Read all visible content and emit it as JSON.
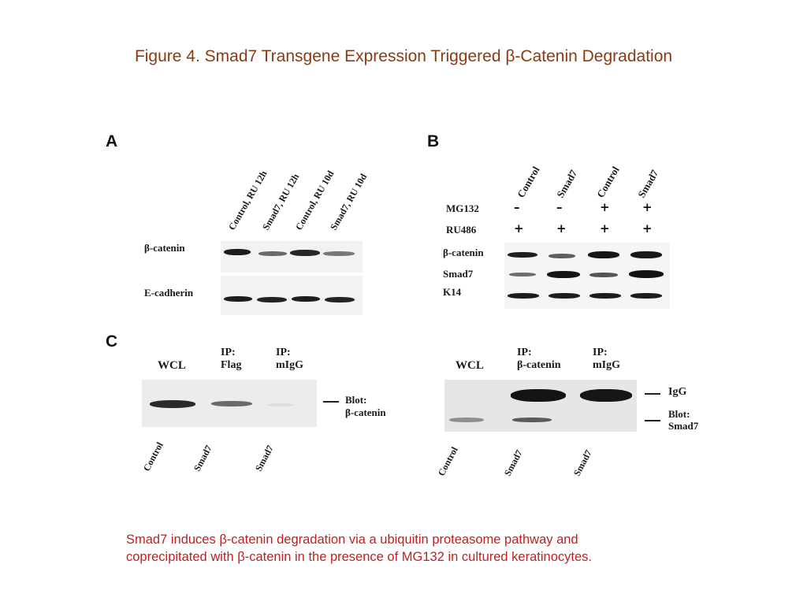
{
  "title": "Figure 4.  Smad7 Transgene Expression Triggered β-Catenin Degradation",
  "caption": {
    "line1": "Smad7 induces β-catenin degradation via a ubiquitin proteasome pathway and",
    "line2": "coprecipitated with β-catenin in the presence of MG132 in cultured keratinocytes."
  },
  "panelA": {
    "letter": "A",
    "lanes": [
      "Control, RU 12h",
      "Smad7, RU 12h",
      "Control, RU 10d",
      "Smad7, RU 10d"
    ],
    "rows": [
      "β-catenin",
      "E-cadherin"
    ]
  },
  "panelB": {
    "letter": "B",
    "lanes": [
      "Control",
      "Smad7",
      "Control",
      "Smad7"
    ],
    "treatments": [
      {
        "label": "MG132",
        "signs": [
          "–",
          "–",
          "+",
          "+"
        ]
      },
      {
        "label": "RU486",
        "signs": [
          "+",
          "+",
          "+",
          "+"
        ]
      }
    ],
    "rows": [
      "β-catenin",
      "Smad7",
      "K14"
    ]
  },
  "panelC": {
    "letter": "C",
    "left": {
      "headers": [
        "WCL",
        "IP:",
        "Flag",
        "IP:",
        "mIgG"
      ],
      "blot_label": [
        "Blot:",
        "β-catenin"
      ],
      "lanes": [
        "Control",
        "Smad7",
        "Smad7"
      ]
    },
    "right": {
      "headers": [
        "WCL",
        "IP:",
        "β-catenin",
        "IP:",
        "mIgG"
      ],
      "labels": [
        "IgG",
        "Blot:",
        "Smad7"
      ],
      "lanes": [
        "Control",
        "Smad7",
        "Smad7"
      ]
    }
  }
}
